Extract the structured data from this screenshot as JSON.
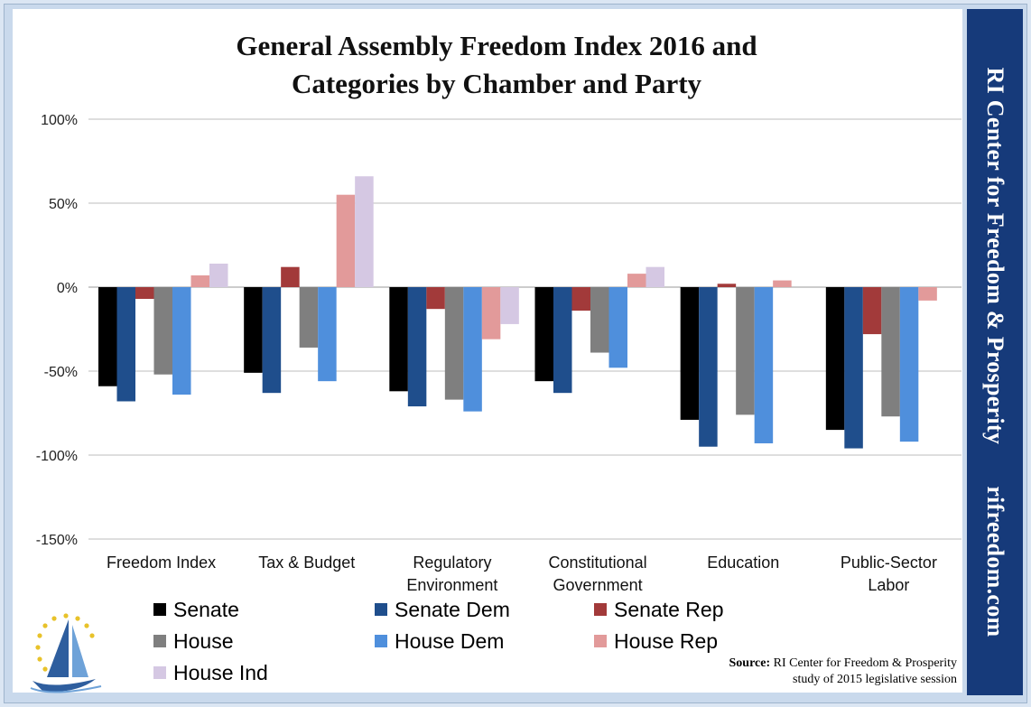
{
  "chart_data": {
    "type": "bar",
    "title": "General Assembly Freedom Index 2016 and Categories by Chamber and Party",
    "title_lines": [
      "General Assembly Freedom Index 2016 and",
      "Categories by Chamber and Party"
    ],
    "categories": [
      [
        "Freedom Index"
      ],
      [
        "Tax & Budget"
      ],
      [
        "Regulatory",
        "Environment"
      ],
      [
        "Constitutional",
        "Government"
      ],
      [
        "Education"
      ],
      [
        "Public-Sector",
        "Labor"
      ]
    ],
    "ylim": [
      -150,
      100
    ],
    "yticks": [
      100,
      50,
      0,
      -50,
      -100,
      -150
    ],
    "ytick_labels": [
      "100%",
      "50%",
      "0%",
      "-50%",
      "-100%",
      "-150%"
    ],
    "grid": true,
    "legend_position": "bottom",
    "series": [
      {
        "name": "Senate",
        "color": "#000000",
        "values": [
          -59,
          -51,
          -62,
          -56,
          -79,
          -85
        ]
      },
      {
        "name": "Senate Dem",
        "color": "#1f4e8c",
        "values": [
          -68,
          -63,
          -71,
          -63,
          -95,
          -96
        ]
      },
      {
        "name": "Senate Rep",
        "color": "#a23a3a",
        "values": [
          -7,
          12,
          -13,
          -14,
          2,
          -28
        ]
      },
      {
        "name": "House",
        "color": "#7f7f7f",
        "values": [
          -52,
          -36,
          -67,
          -39,
          -76,
          -77
        ]
      },
      {
        "name": "House Dem",
        "color": "#4f8fdc",
        "values": [
          -64,
          -56,
          -74,
          -48,
          -93,
          -92
        ]
      },
      {
        "name": "House Rep",
        "color": "#e29a9a",
        "values": [
          7,
          55,
          -31,
          8,
          4,
          -8
        ]
      },
      {
        "name": "House Ind",
        "color": "#d5c8e3",
        "values": [
          14,
          66,
          -22,
          12,
          0,
          0
        ]
      }
    ]
  },
  "sidebar": {
    "org": "RI Center for Freedom & Prosperity",
    "site": "rifreedom.com"
  },
  "source": {
    "label": "Source:",
    "line1": "RI Center for Freedom & Prosperity",
    "line2": "study of 2015 legislative session"
  },
  "logo": {
    "icon": "sailboat-stars-logo"
  }
}
